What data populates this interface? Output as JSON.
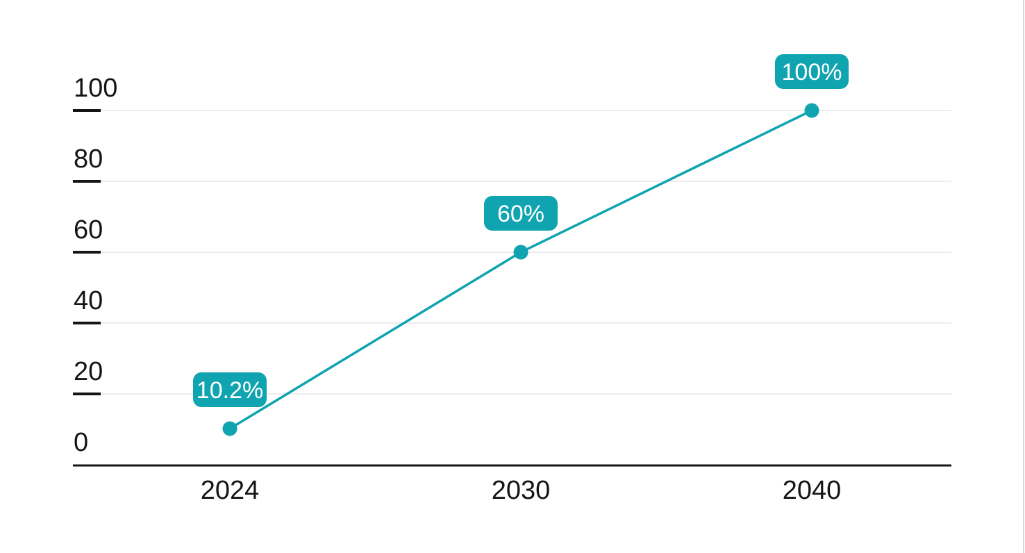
{
  "chart_data": {
    "type": "line",
    "title": "",
    "xlabel": "",
    "ylabel": "",
    "categories": [
      "2024",
      "2030",
      "2040"
    ],
    "values": [
      10.2,
      60,
      100
    ],
    "point_labels": [
      "10.2%",
      "60%",
      "100%"
    ],
    "y_ticks": [
      0,
      20,
      40,
      60,
      80,
      100
    ],
    "ylim": [
      0,
      100
    ],
    "grid": "horizontal",
    "legend": "none",
    "colors": {
      "series": "#0FA4AF",
      "point_label_bg": "#0FA4AF",
      "point_label_text": "#FFFFFF",
      "gridline": "#EDEDED",
      "axis": "#151515",
      "tick_text": "#151515",
      "background": "#FFFFFF",
      "right_edge_line": "#D9D9D9"
    }
  }
}
